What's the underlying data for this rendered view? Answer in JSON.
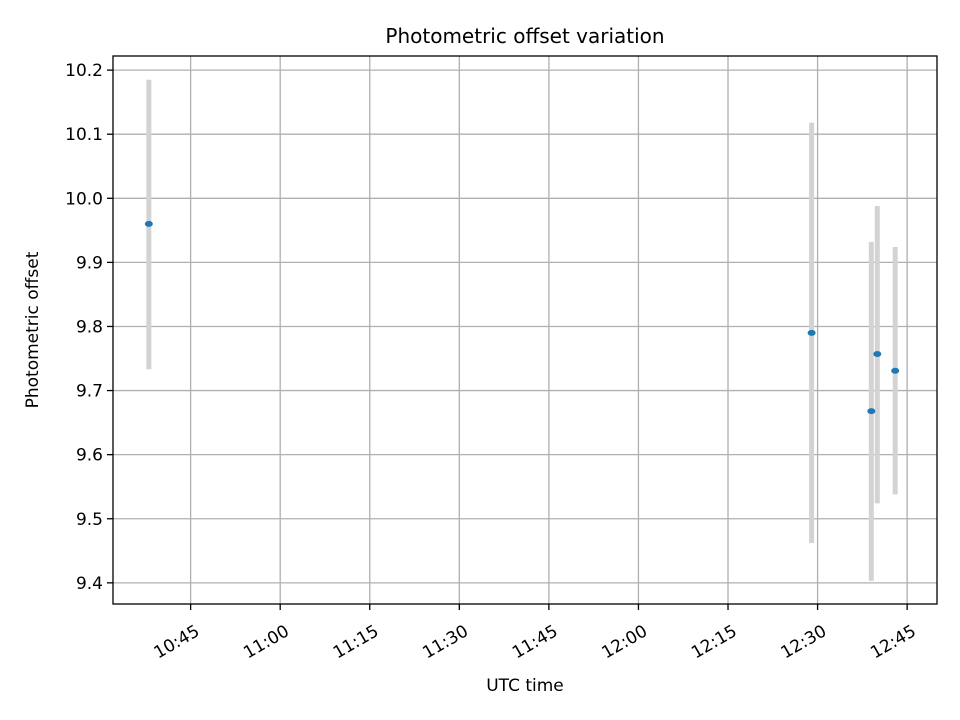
{
  "chart_data": {
    "type": "scatter",
    "title": "Photometric offset variation",
    "xlabel": "UTC time",
    "ylabel": "Photometric offset",
    "x_ticks": [
      "10:45",
      "11:00",
      "11:15",
      "11:30",
      "11:45",
      "12:00",
      "12:15",
      "12:30",
      "12:45"
    ],
    "y_ticks": [
      "9.4",
      "9.5",
      "9.6",
      "9.7",
      "9.8",
      "9.9",
      "10.0",
      "10.1",
      "10.2"
    ],
    "xlim": [
      "10:32",
      "12:50"
    ],
    "ylim": [
      9.367,
      10.222
    ],
    "grid": true,
    "points": [
      {
        "x": "10:38",
        "y": 9.96,
        "err_low": 9.733,
        "err_high": 10.185
      },
      {
        "x": "12:29",
        "y": 9.79,
        "err_low": 9.462,
        "err_high": 10.118
      },
      {
        "x": "12:39",
        "y": 9.668,
        "err_low": 9.403,
        "err_high": 9.932
      },
      {
        "x": "12:40",
        "y": 9.757,
        "err_low": 9.524,
        "err_high": 9.988
      },
      {
        "x": "12:43",
        "y": 9.731,
        "err_low": 9.538,
        "err_high": 9.924
      }
    ],
    "colors": {
      "point": "#1f77b4",
      "errorbar": "#d3d3d3",
      "grid": "#b0b0b0"
    }
  }
}
